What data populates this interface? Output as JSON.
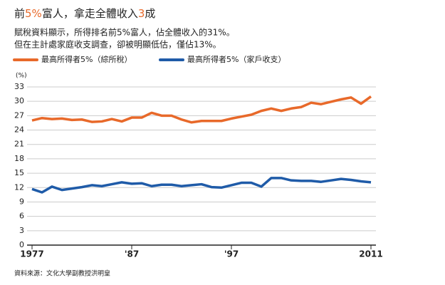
{
  "chart_data": {
    "type": "line",
    "title": [
      {
        "text": "前",
        "color": "#222222"
      },
      {
        "text": "5%",
        "color": "#e8692a"
      },
      {
        "text": "富人，拿走全體收入",
        "color": "#222222"
      },
      {
        "text": "3",
        "color": "#e8692a"
      },
      {
        "text": "成",
        "color": "#222222"
      }
    ],
    "subtitle": [
      "賦稅資料顯示，所得排名前5%富人，佔全體收入的31%。",
      "但在主計處家庭收支調查，卻被明顯低估，僅佔13%。"
    ],
    "y_unit": "(%)",
    "source": "資料來源：文化大學副教授洪明皇",
    "x": [
      1977,
      1978,
      1979,
      1980,
      1981,
      1982,
      1983,
      1984,
      1985,
      1986,
      1987,
      1988,
      1989,
      1990,
      1991,
      1992,
      1993,
      1994,
      1995,
      1996,
      1997,
      1998,
      1999,
      2000,
      2001,
      2002,
      2003,
      2004,
      2005,
      2006,
      2007,
      2008,
      2009,
      2010,
      2011
    ],
    "series": [
      {
        "name": "最高所得者5%（綜所稅）",
        "color": "#e8692a",
        "values": [
          26.0,
          26.5,
          26.3,
          26.4,
          26.1,
          26.2,
          25.7,
          25.8,
          26.3,
          25.8,
          26.6,
          26.6,
          27.6,
          27.0,
          27.0,
          26.2,
          25.6,
          25.9,
          25.9,
          25.9,
          26.4,
          26.8,
          27.2,
          28.0,
          28.5,
          28.0,
          28.5,
          28.8,
          29.7,
          29.4,
          29.9,
          30.4,
          30.8,
          29.5,
          31.0
        ]
      },
      {
        "name": "最高所得者5%（家戶收支）",
        "color": "#1f5ba8",
        "values": [
          11.7,
          11.0,
          12.2,
          11.5,
          11.8,
          12.1,
          12.5,
          12.3,
          12.7,
          13.1,
          12.8,
          12.9,
          12.3,
          12.6,
          12.6,
          12.3,
          12.5,
          12.7,
          12.1,
          12.0,
          12.5,
          13.0,
          13.0,
          12.2,
          14.0,
          14.0,
          13.5,
          13.4,
          13.4,
          13.2,
          13.5,
          13.8,
          13.6,
          13.3,
          13.1
        ]
      }
    ],
    "xlim": [
      1977,
      2011
    ],
    "xticks": [
      1977,
      {
        "value": 1987,
        "label": "'87"
      },
      {
        "value": 1997,
        "label": "'97"
      },
      2011
    ],
    "ylim": [
      0,
      33
    ],
    "yticks": [
      0,
      3,
      6,
      9,
      12,
      15,
      18,
      21,
      24,
      27,
      30,
      33
    ],
    "grid": true
  }
}
